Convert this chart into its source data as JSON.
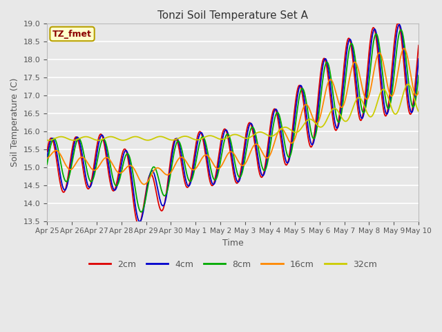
{
  "title": "Tonzi Soil Temperature Set A",
  "xlabel": "Time",
  "ylabel": "Soil Temperature (C)",
  "ylim": [
    13.5,
    19.0
  ],
  "background_color": "#e8e8e8",
  "grid_color": "#ffffff",
  "label_color": "#555555",
  "annotation_text": "TZ_fmet",
  "annotation_color": "#8b0000",
  "annotation_bg": "#ffffcc",
  "annotation_border": "#b8a000",
  "colors": {
    "2cm": "#dd0000",
    "4cm": "#0000cc",
    "8cm": "#00aa00",
    "16cm": "#ff8800",
    "32cm": "#cccc00"
  },
  "x_ticks": [
    "Apr 25",
    "Apr 26",
    "Apr 27",
    "Apr 28",
    "Apr 29",
    "Apr 30",
    "May 1",
    "May 2",
    "May 3",
    "May 4",
    "May 5",
    "May 6",
    "May 7",
    "May 8",
    "May 9",
    "May 10"
  ],
  "yticks": [
    13.5,
    14.0,
    14.5,
    15.0,
    15.5,
    16.0,
    16.5,
    17.0,
    17.5,
    18.0,
    18.5,
    19.0
  ]
}
